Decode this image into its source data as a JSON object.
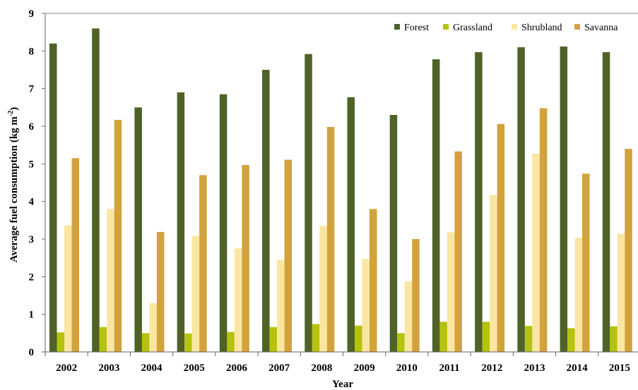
{
  "chart_data": {
    "type": "bar",
    "categories": [
      "2002",
      "2003",
      "2004",
      "2005",
      "2006",
      "2007",
      "2008",
      "2009",
      "2010",
      "2011",
      "2012",
      "2013",
      "2014",
      "2015"
    ],
    "series": [
      {
        "name": "Forest",
        "color": "#4f6228",
        "values": [
          8.2,
          8.6,
          6.5,
          6.9,
          6.85,
          7.5,
          7.92,
          6.77,
          6.3,
          7.78,
          7.97,
          8.1,
          8.12,
          7.97
        ]
      },
      {
        "name": "Grassland",
        "color": "#b5c20e",
        "values": [
          0.52,
          0.66,
          0.5,
          0.49,
          0.53,
          0.66,
          0.74,
          0.7,
          0.5,
          0.8,
          0.8,
          0.69,
          0.63,
          0.68
        ]
      },
      {
        "name": "Shrubland",
        "color": "#fae6a0",
        "values": [
          3.36,
          3.8,
          1.3,
          3.08,
          2.75,
          2.45,
          3.35,
          2.47,
          1.88,
          3.18,
          4.17,
          5.27,
          3.04,
          3.14
        ]
      },
      {
        "name": "Savanna",
        "color": "#d2a23c",
        "values": [
          5.15,
          6.17,
          3.19,
          4.7,
          4.97,
          5.11,
          5.98,
          3.8,
          3.0,
          5.33,
          6.06,
          6.48,
          4.74,
          5.4
        ]
      }
    ],
    "xlabel": "Year",
    "ylabel": "Average fuel consumption (kg m",
    "ylabel_sup": "-2",
    "ylabel_close": ")",
    "ylim": [
      0,
      9
    ],
    "yticks": [
      "0",
      "1",
      "2",
      "3",
      "4",
      "5",
      "6",
      "7",
      "8",
      "9"
    ],
    "grid": false,
    "legend_position": "top-right"
  }
}
